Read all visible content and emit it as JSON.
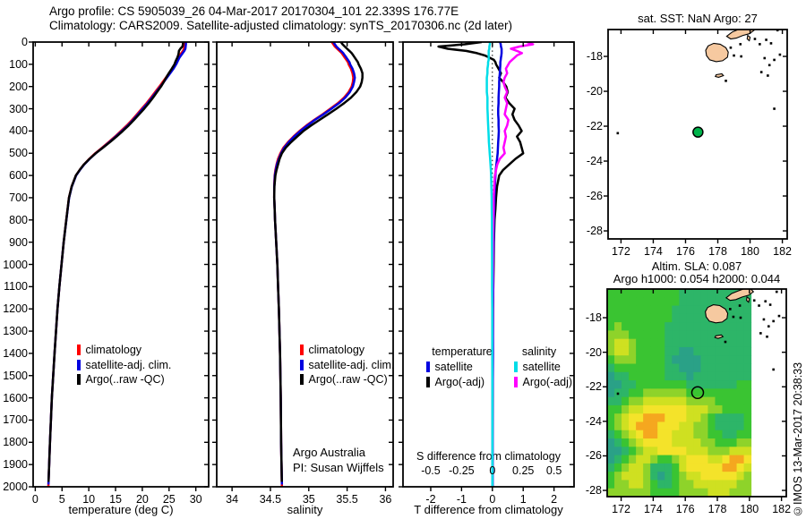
{
  "header": {
    "line1": "Argo profile: CS 5905039_26 04-Mar-2017 20170304_101 22.339S 176.77E",
    "line2": "Climatology: CARS2009. Satellite-adjusted climatology: synTS_20170306.nc (2d later)"
  },
  "watermark": "©IMOS 13-Mar-2017 20:38:33",
  "land": {
    "fill": "#f6c9a0",
    "polygons": [
      [
        [
          177.25,
          -17.65
        ],
        [
          177.4,
          -17.4
        ],
        [
          177.75,
          -17.25
        ],
        [
          178.15,
          -17.3
        ],
        [
          178.5,
          -17.5
        ],
        [
          178.65,
          -17.75
        ],
        [
          178.6,
          -18.05
        ],
        [
          178.3,
          -18.25
        ],
        [
          177.9,
          -18.3
        ],
        [
          177.5,
          -18.2
        ],
        [
          177.3,
          -17.95
        ]
      ],
      [
        [
          178.55,
          -16.85
        ],
        [
          178.9,
          -16.6
        ],
        [
          179.3,
          -16.45
        ],
        [
          179.75,
          -16.3
        ],
        [
          180.1,
          -16.35
        ],
        [
          180.25,
          -16.5
        ],
        [
          179.95,
          -16.7
        ],
        [
          179.55,
          -16.8
        ],
        [
          179.15,
          -16.95
        ],
        [
          178.8,
          -17.0
        ]
      ],
      [
        [
          179.85,
          -16.8
        ],
        [
          180.0,
          -16.9
        ],
        [
          179.95,
          -17.1
        ],
        [
          179.82,
          -17.0
        ]
      ],
      [
        [
          177.9,
          -19.05
        ],
        [
          178.25,
          -19.0
        ],
        [
          178.35,
          -19.1
        ],
        [
          178.05,
          -19.2
        ],
        [
          177.85,
          -19.15
        ]
      ]
    ],
    "dots": [
      [
        179.4,
        -17.3
      ],
      [
        179.0,
        -17.95
      ],
      [
        179.45,
        -18.0
      ],
      [
        178.8,
        -17.5
      ],
      [
        180.3,
        -17.0
      ],
      [
        180.6,
        -17.3
      ],
      [
        181.0,
        -17.05
      ],
      [
        181.3,
        -17.25
      ],
      [
        180.9,
        -18.1
      ],
      [
        181.2,
        -18.5
      ],
      [
        181.5,
        -18.2
      ],
      [
        180.7,
        -18.9
      ],
      [
        181.1,
        -19.1
      ],
      [
        178.5,
        -19.4
      ],
      [
        181.7,
        -16.5
      ],
      [
        180.45,
        -16.2
      ],
      [
        181.05,
        -16.3
      ],
      [
        181.85,
        -17.9
      ],
      [
        171.8,
        -22.4
      ],
      [
        181.5,
        -21.0
      ]
    ]
  },
  "chart_data": [
    {
      "id": "temperature_profile",
      "type": "line",
      "xlabel": "temperature (deg C)",
      "xlim": [
        -0.4,
        32.4
      ],
      "xticks": [
        0,
        5,
        10,
        15,
        20,
        25,
        30
      ],
      "ylim": [
        0,
        2000
      ],
      "ytick_step": 100,
      "ytick_labels": true,
      "legend": [
        {
          "label": "climatology",
          "color": "#ff0000"
        },
        {
          "label": "satellite-adj. clim.",
          "color": "#0000e0"
        },
        {
          "label": "Argo(..raw -QC)",
          "color": "#000000"
        }
      ],
      "depths": [
        0,
        10,
        20,
        30,
        40,
        50,
        60,
        70,
        80,
        90,
        100,
        120,
        140,
        160,
        180,
        200,
        225,
        250,
        275,
        300,
        325,
        350,
        375,
        400,
        425,
        450,
        475,
        500,
        525,
        550,
        575,
        600,
        650,
        700,
        750,
        800,
        900,
        1000,
        1100,
        1200,
        1400,
        1600,
        1800,
        2000
      ],
      "series": [
        {
          "name": "climatology",
          "color": "#ff0000",
          "values": [
            27.9,
            27.9,
            27.85,
            27.8,
            27.6,
            27.3,
            27.0,
            26.7,
            26.5,
            26.3,
            26.1,
            25.6,
            25.0,
            24.4,
            23.8,
            23.2,
            22.4,
            21.6,
            20.8,
            19.9,
            19.0,
            18.1,
            17.1,
            16.0,
            14.9,
            13.7,
            12.5,
            11.2,
            10.1,
            9.1,
            8.3,
            7.6,
            6.8,
            6.3,
            6.05,
            5.8,
            5.3,
            4.9,
            4.5,
            4.15,
            3.6,
            3.1,
            2.75,
            2.45
          ]
        },
        {
          "name": "satellite-adj. clim.",
          "color": "#0000e0",
          "max_depth": 1990,
          "values": [
            28.15,
            28.15,
            28.1,
            28.05,
            27.85,
            27.55,
            27.25,
            26.95,
            26.72,
            26.52,
            26.32,
            25.82,
            25.22,
            24.6,
            24.0,
            23.4,
            22.6,
            21.8,
            21.0,
            20.1,
            19.2,
            18.3,
            17.3,
            16.2,
            15.05,
            13.85,
            12.62,
            11.3,
            10.18,
            9.16,
            8.35,
            7.64,
            6.83,
            6.32,
            6.06,
            5.81,
            5.3,
            4.9,
            4.5,
            4.15,
            3.6,
            3.1,
            2.75,
            2.45
          ]
        },
        {
          "name": "Argo(..raw -QC)",
          "color": "#000000",
          "max_depth": 1978,
          "values": [
            27.6,
            27.6,
            27.5,
            27.1,
            26.85,
            26.8,
            26.7,
            26.55,
            26.35,
            26.15,
            26.0,
            25.5,
            24.95,
            24.45,
            24.0,
            23.5,
            22.75,
            22.0,
            21.2,
            20.35,
            19.4,
            18.45,
            17.45,
            16.35,
            15.2,
            13.95,
            12.65,
            11.3,
            10.15,
            9.1,
            8.3,
            7.58,
            6.8,
            6.3,
            6.05,
            5.8,
            5.3,
            4.9,
            4.5,
            4.15,
            3.6,
            3.1,
            2.75,
            2.45
          ]
        }
      ]
    },
    {
      "id": "salinity_profile",
      "type": "line",
      "xlabel": "salinity",
      "xlim": [
        33.8,
        36.1
      ],
      "xticks": [
        34,
        34.5,
        35,
        35.5,
        36
      ],
      "ylim": [
        0,
        2000
      ],
      "ytick_step": 100,
      "ytick_labels": false,
      "annotations": [
        "Argo Australia",
        "PI: Susan Wijffels"
      ],
      "legend": [
        {
          "label": "climatology",
          "color": "#ff0000"
        },
        {
          "label": "satellite-adj. clim.",
          "color": "#0000e0"
        },
        {
          "label": "Argo(..raw -QC)",
          "color": "#000000"
        }
      ],
      "depths": [
        0,
        10,
        20,
        30,
        40,
        50,
        60,
        70,
        80,
        90,
        100,
        120,
        140,
        160,
        180,
        200,
        225,
        250,
        275,
        300,
        325,
        350,
        375,
        400,
        425,
        450,
        475,
        500,
        525,
        550,
        575,
        600,
        650,
        700,
        750,
        800,
        900,
        1000,
        1100,
        1200,
        1400,
        1600,
        1800,
        2000
      ],
      "series": [
        {
          "name": "climatology",
          "color": "#ff0000",
          "values": [
            35.3,
            35.32,
            35.34,
            35.37,
            35.4,
            35.43,
            35.45,
            35.47,
            35.49,
            35.51,
            35.52,
            35.55,
            35.57,
            35.58,
            35.575,
            35.56,
            35.52,
            35.46,
            35.38,
            35.28,
            35.18,
            35.07,
            34.97,
            34.88,
            34.8,
            34.73,
            34.67,
            34.63,
            34.6,
            34.58,
            34.565,
            34.555,
            34.55,
            34.55,
            34.555,
            34.56,
            34.575,
            34.59,
            34.6,
            34.61,
            34.625,
            34.635,
            34.64,
            34.65
          ]
        },
        {
          "name": "satellite-adj. clim.",
          "color": "#0000e0",
          "max_depth": 1990,
          "values": [
            35.32,
            35.34,
            35.36,
            35.39,
            35.42,
            35.45,
            35.47,
            35.49,
            35.51,
            35.53,
            35.54,
            35.57,
            35.59,
            35.6,
            35.59,
            35.575,
            35.535,
            35.475,
            35.395,
            35.295,
            35.19,
            35.08,
            34.98,
            34.89,
            34.81,
            34.74,
            34.68,
            34.64,
            34.61,
            34.585,
            34.57,
            34.558,
            34.551,
            34.55,
            34.555,
            34.56,
            34.575,
            34.59,
            34.6,
            34.61,
            34.625,
            34.635,
            34.64,
            34.65
          ]
        },
        {
          "name": "Argo(..raw -QC)",
          "color": "#000000",
          "max_depth": 1978,
          "values": [
            35.42,
            35.44,
            35.47,
            35.5,
            35.53,
            35.56,
            35.58,
            35.6,
            35.62,
            35.64,
            35.65,
            35.68,
            35.7,
            35.7,
            35.69,
            35.67,
            35.62,
            35.55,
            35.46,
            35.36,
            35.25,
            35.14,
            35.03,
            34.93,
            34.85,
            34.77,
            34.7,
            34.65,
            34.62,
            34.6,
            34.58,
            34.565,
            34.552,
            34.55,
            34.555,
            34.56,
            34.575,
            34.59,
            34.6,
            34.61,
            34.625,
            34.635,
            34.64,
            34.65
          ]
        }
      ]
    },
    {
      "id": "difference_profile",
      "type": "line",
      "xlabel": "T difference from climatology",
      "xlim": [
        -2.9,
        2.65
      ],
      "xticks": [
        -2,
        -1,
        0,
        1,
        2
      ],
      "ylim": [
        0,
        2000
      ],
      "ytick_step": 100,
      "ytick_labels": false,
      "zero_line": true,
      "s_axis": {
        "label": "S difference from climatology",
        "ticks": [
          -0.5,
          -0.25,
          0,
          0.25,
          0.5
        ],
        "scale_to_T": 4
      },
      "legend_temperature": {
        "header": "temperature",
        "items": [
          {
            "label": "satellite",
            "color": "#0000e0"
          },
          {
            "label": "Argo(-adj)",
            "color": "#000000"
          }
        ]
      },
      "legend_salinity": {
        "header": "salinity",
        "items": [
          {
            "label": "satellite",
            "color": "#00dde8"
          },
          {
            "label": "Argo(-adj)",
            "color": "#ff00ff"
          }
        ]
      },
      "depths": [
        0,
        10,
        20,
        30,
        40,
        50,
        60,
        70,
        80,
        90,
        100,
        120,
        140,
        160,
        180,
        200,
        225,
        250,
        275,
        300,
        325,
        350,
        375,
        400,
        425,
        450,
        475,
        500,
        525,
        550,
        575,
        600,
        650,
        700,
        750,
        800,
        900,
        1000,
        1100,
        1200,
        1400,
        1600,
        1800,
        2000
      ],
      "series": [
        {
          "name": "T Argo(-adj)",
          "color": "#000000",
          "axis": "T",
          "values": [
            -0.35,
            -0.9,
            -1.75,
            -1.45,
            -0.85,
            -0.5,
            -0.25,
            -0.1,
            0.05,
            0.1,
            0.12,
            0.2,
            0.28,
            0.22,
            0.35,
            0.45,
            0.5,
            0.42,
            0.55,
            0.72,
            0.65,
            0.72,
            0.85,
            0.95,
            0.8,
            0.9,
            0.95,
            1.0,
            0.75,
            0.55,
            0.35,
            0.22,
            0.15,
            0.12,
            0.1,
            0.07,
            0.05,
            0.04,
            0.03,
            0.02,
            0.01,
            0.01,
            0.0,
            0.0
          ]
        },
        {
          "name": "T satellite",
          "color": "#0000e0",
          "axis": "T",
          "values": [
            0.25,
            0.27,
            0.28,
            0.3,
            0.3,
            0.3,
            0.29,
            0.28,
            0.27,
            0.26,
            0.26,
            0.25,
            0.24,
            0.23,
            0.22,
            0.22,
            0.21,
            0.2,
            0.2,
            0.19,
            0.19,
            0.2,
            0.2,
            0.21,
            0.2,
            0.19,
            0.18,
            0.17,
            0.15,
            0.13,
            0.11,
            0.1,
            0.08,
            0.07,
            0.06,
            0.05,
            0.04,
            0.03,
            0.03,
            0.02,
            0.02,
            0.01,
            0.01,
            0.01
          ]
        },
        {
          "name": "S Argo(-adj)",
          "color": "#ff00ff",
          "axis": "S",
          "values": [
            0.28,
            0.33,
            0.22,
            0.15,
            0.2,
            0.24,
            0.2,
            0.18,
            0.16,
            0.14,
            0.13,
            0.11,
            0.12,
            0.1,
            0.09,
            0.1,
            0.12,
            0.1,
            0.12,
            0.11,
            0.1,
            0.13,
            0.12,
            0.1,
            0.11,
            0.1,
            0.09,
            0.1,
            0.06,
            0.04,
            0.03,
            0.02,
            0.015,
            0.01,
            0.01,
            0.008,
            0.005,
            0.004,
            0.003,
            0.002,
            0.001,
            0,
            0,
            0
          ]
        },
        {
          "name": "S satellite",
          "color": "#00dde8",
          "axis": "S",
          "values": [
            -0.02,
            -0.02,
            -0.025,
            -0.025,
            -0.03,
            -0.03,
            -0.03,
            -0.03,
            -0.03,
            -0.035,
            -0.035,
            -0.04,
            -0.04,
            -0.045,
            -0.045,
            -0.045,
            -0.045,
            -0.04,
            -0.04,
            -0.04,
            -0.038,
            -0.036,
            -0.034,
            -0.032,
            -0.03,
            -0.028,
            -0.025,
            -0.022,
            -0.018,
            -0.015,
            -0.012,
            -0.01,
            -0.008,
            -0.006,
            -0.005,
            -0.004,
            -0.003,
            -0.002,
            -0.002,
            -0.001,
            -0.001,
            0,
            0,
            0
          ]
        }
      ]
    },
    {
      "id": "sst_map",
      "type": "map",
      "title": "sat. SST: NaN Argo: 27",
      "xlim": [
        171.2,
        182.3
      ],
      "ylim": [
        -16.46,
        -28.46
      ],
      "xticks": [
        172,
        174,
        176,
        178,
        180,
        182
      ],
      "yticks": [
        -18,
        -20,
        -22,
        -24,
        -26,
        -28
      ],
      "marker": {
        "lon": 176.77,
        "lat": -22.34,
        "fill": "#00b44b",
        "open": false
      }
    },
    {
      "id": "sla_map",
      "type": "heatmap",
      "title_line1": "Altim. SLA: 0.087",
      "title_line2": "Argo h1000: 0.054 h2000: 0.044",
      "xlim": [
        171.13,
        182.3
      ],
      "ylim": [
        -16.34,
        -28.36
      ],
      "xticks": [
        172,
        174,
        176,
        178,
        180,
        182
      ],
      "yticks": [
        -18,
        -20,
        -22,
        -24,
        -26,
        -28
      ],
      "marker": {
        "lon": 176.77,
        "lat": -22.34,
        "fill": "none",
        "open": true
      },
      "heatmap": {
        "lon_range": [
          171.13,
          180.1
        ],
        "lat_range": [
          -16.34,
          -28.36
        ],
        "palette": [
          "#2aa187",
          "#2db568",
          "#3ac432",
          "#8ed32a",
          "#cfe021",
          "#f4e32a",
          "#f5a71f"
        ],
        "rows": [
          "22222222221111111111",
          "22222222221111111111",
          "22222222211111111111",
          "22222222211111111111",
          "23222222111111111111",
          "33322222111111111111",
          "34432222111111111111",
          "34432222110011111111",
          "23332222100001111111",
          "12222222110001111111",
          "01122222111011111111",
          "00112222222111111122",
          "01122333333222222222",
          "11233444444333322222",
          "22344555555444332222",
          "23455666555443211112",
          "23456665554433211112",
          "12345665544433221122",
          "01234555544443322233",
          "00123445555444333444",
          "01234432234555445665",
          "12344311124555556654",
          "23444310123445555543",
          "23344321123344444433",
          "33333322223333444333"
        ]
      }
    }
  ]
}
